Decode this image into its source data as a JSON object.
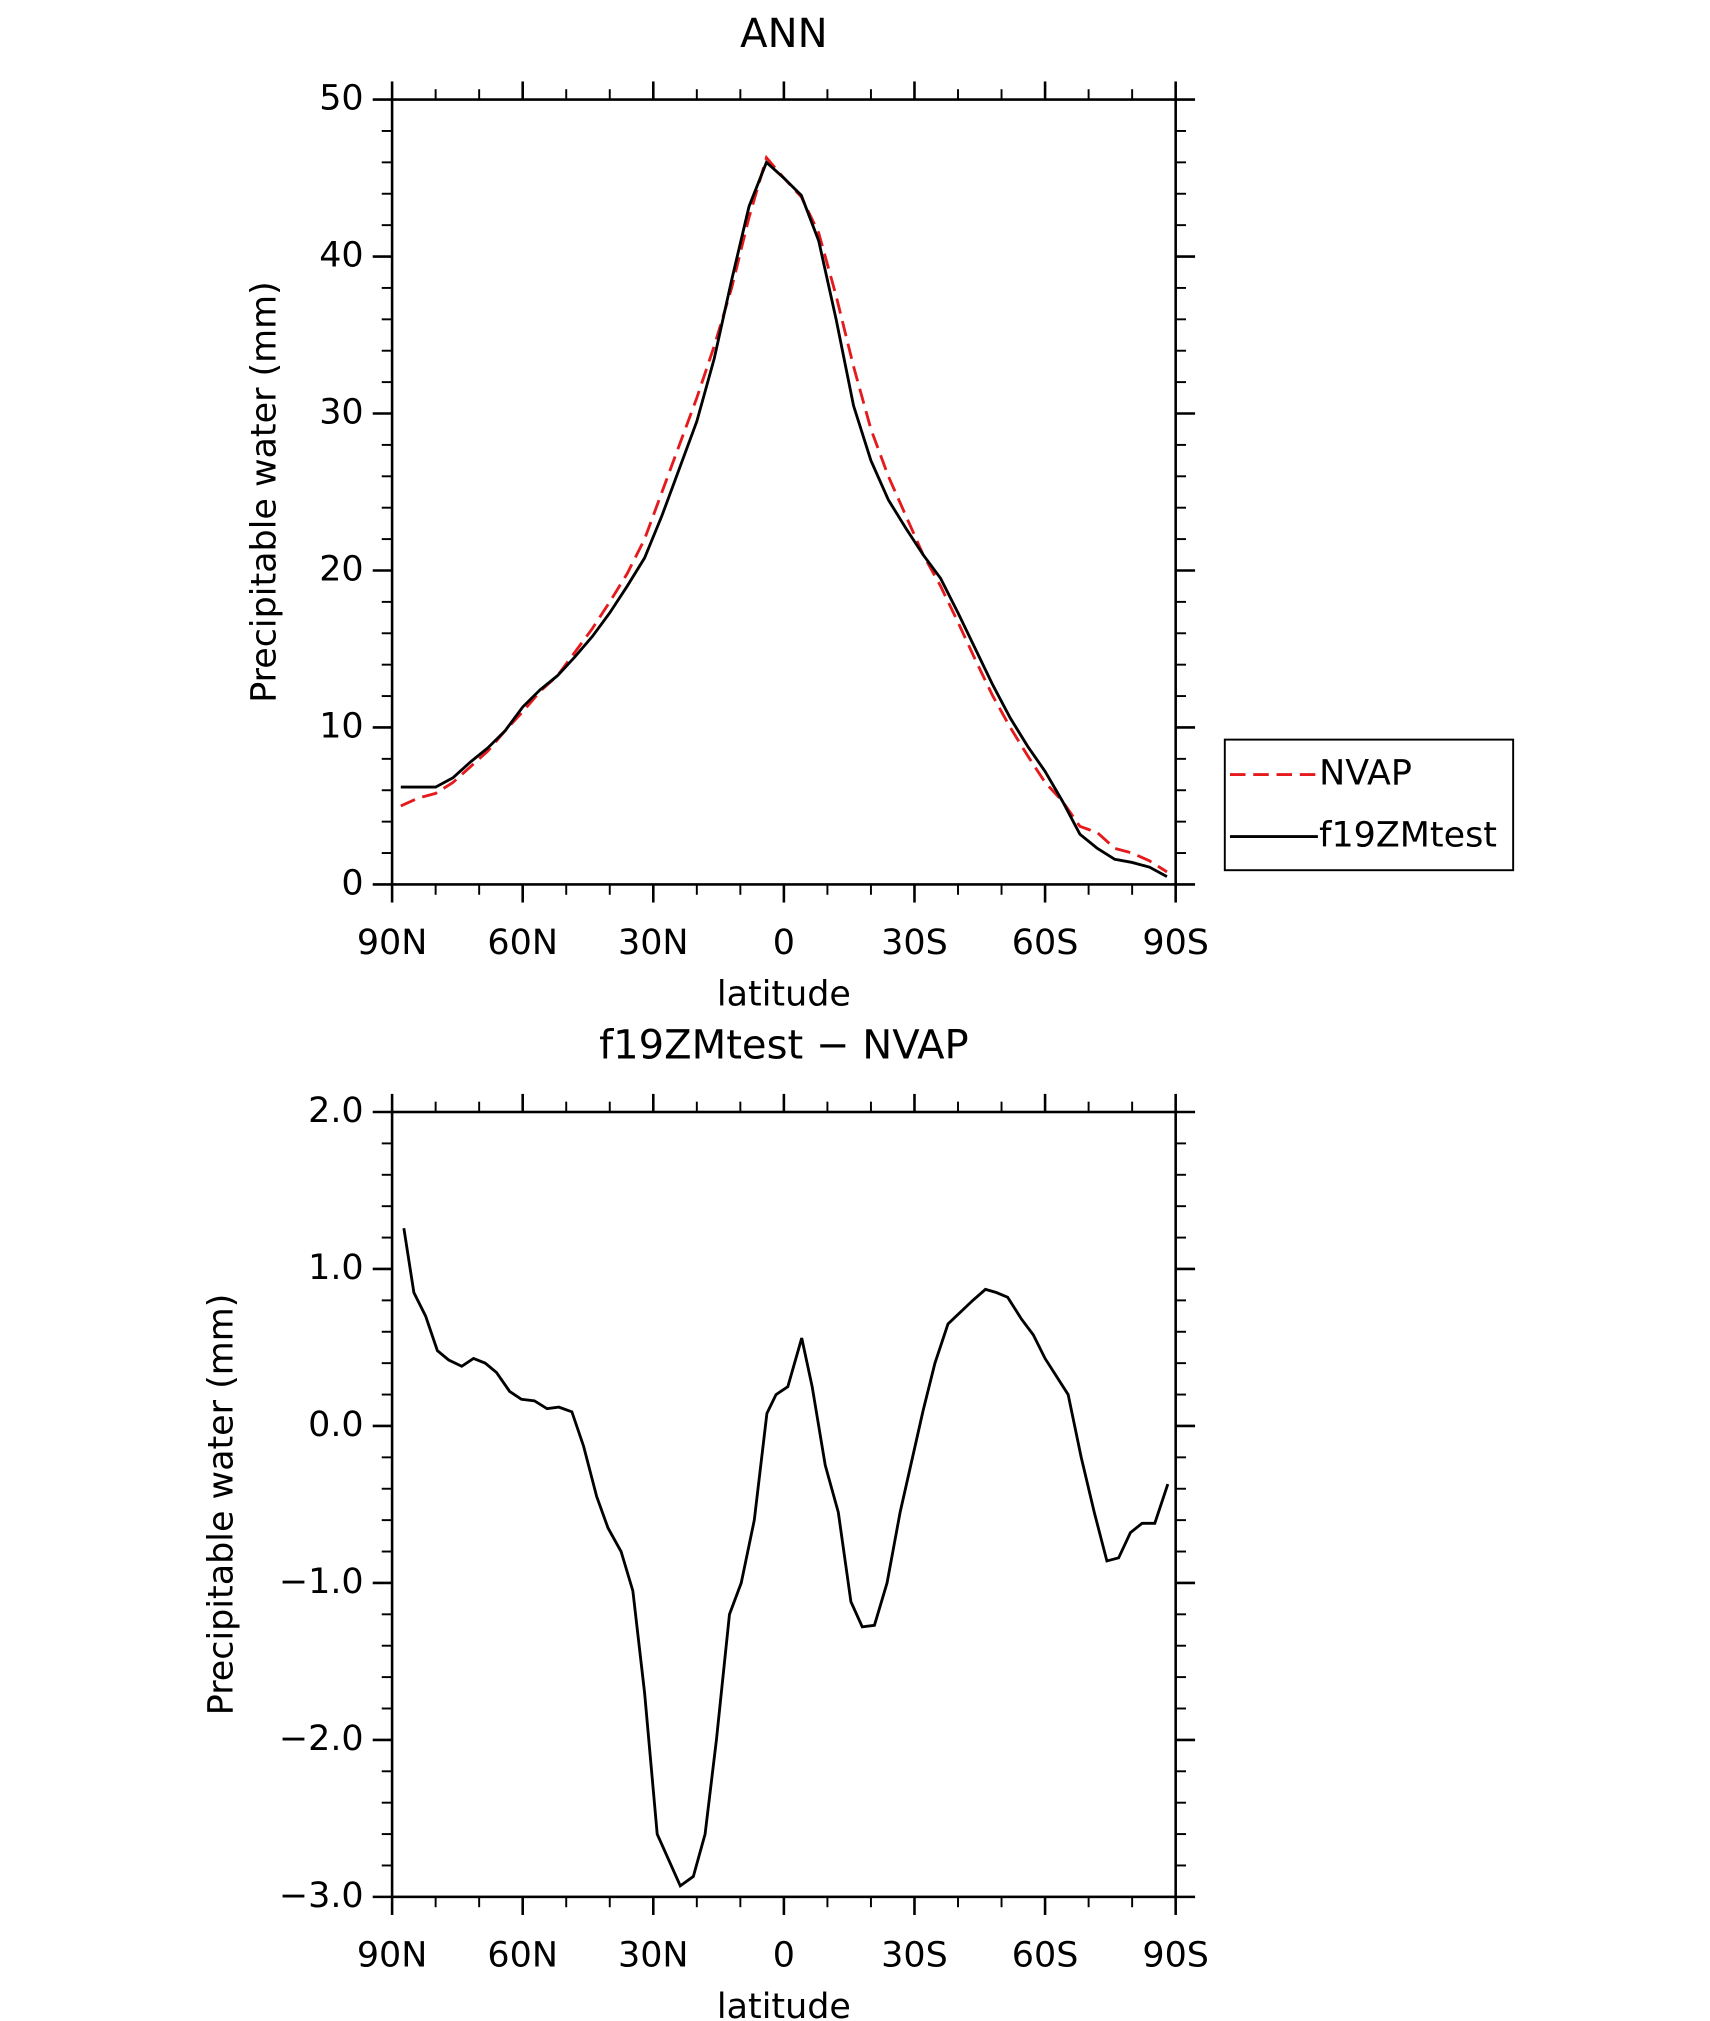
{
  "chart_data": [
    {
      "type": "line",
      "title": "ANN",
      "x_label": "latitude",
      "y_label": "Precipitable water (mm)",
      "x": [
        88,
        84,
        80,
        76,
        72,
        68,
        64,
        60,
        56,
        52,
        48,
        44,
        40,
        36,
        32,
        28,
        24,
        20,
        16,
        12,
        8,
        4,
        0,
        -4,
        -8,
        -12,
        -16,
        -20,
        -24,
        -28,
        -32,
        -36,
        -40,
        -44,
        -48,
        -52,
        -56,
        -60,
        -64,
        -68,
        -72,
        -76,
        -80,
        -84,
        -88
      ],
      "series": [
        {
          "name": "NVAP",
          "color": "#e41a1c",
          "line_style": "dashed",
          "values": [
            5.0,
            5.5,
            5.8,
            6.5,
            7.5,
            8.5,
            9.8,
            11,
            12.3,
            13.3,
            14.8,
            16.3,
            18,
            19.8,
            22,
            25,
            28,
            31,
            34.3,
            38,
            42.5,
            46.3,
            45,
            43.8,
            41.5,
            37.5,
            33,
            29,
            26,
            23.5,
            21,
            19,
            16.7,
            14.3,
            12,
            10,
            8.2,
            6.5,
            5.3,
            3.7,
            3.3,
            2.3,
            2.0,
            1.5,
            0.8
          ]
        },
        {
          "name": "f19ZMtest",
          "color": "#000000",
          "line_style": "solid",
          "values": [
            6.2,
            6.2,
            6.2,
            6.8,
            7.8,
            8.7,
            9.8,
            11.3,
            12.4,
            13.3,
            14.5,
            15.8,
            17.3,
            19,
            20.8,
            23.5,
            26.5,
            29.5,
            33.5,
            38.5,
            43.2,
            46.0,
            45,
            43.9,
            41,
            36,
            30.5,
            27,
            24.5,
            22.7,
            21,
            19.5,
            17.3,
            15,
            12.7,
            10.6,
            8.8,
            7.2,
            5.3,
            3.2,
            2.3,
            1.6,
            1.4,
            1.1,
            0.5
          ]
        }
      ],
      "xlim": [
        90,
        -90
      ],
      "xticks": [
        {
          "value": 90,
          "label": "90N"
        },
        {
          "value": 60,
          "label": "60N"
        },
        {
          "value": 30,
          "label": "30N"
        },
        0,
        {
          "value": -30,
          "label": "30S"
        },
        {
          "value": -60,
          "label": "60S"
        },
        {
          "value": -90,
          "label": "90S"
        }
      ],
      "ylim": [
        0,
        50
      ],
      "yticks": [
        0,
        10,
        20,
        30,
        40,
        50
      ],
      "legend": "right"
    },
    {
      "type": "line",
      "title": "f19ZMtest − NVAP",
      "x_label": "latitude",
      "y_label": "Precipitable water (mm)",
      "x": [
        87.3,
        85,
        82.3,
        79.6,
        77,
        74,
        71.3,
        68.6,
        66,
        63,
        60.3,
        57.3,
        54.4,
        51.7,
        48.7,
        46,
        43,
        40.4,
        37.4,
        34.7,
        32,
        29.1,
        23.8,
        20.8,
        18.1,
        15.5,
        12.5,
        9.8,
        6.8,
        3.9,
        1.8,
        -0.9,
        -4.1,
        -6.5,
        -9.5,
        -12.5,
        -15.4,
        -18,
        -20.8,
        -23.7,
        -26.7,
        -32,
        -34.7,
        -37.7,
        -43.4,
        -46.3,
        -48.8,
        -51.4,
        -54.6,
        -57.3,
        -60,
        -65.3,
        -68.3,
        -71.3,
        -74.2,
        -76.9,
        -79.6,
        -82.3,
        -85.2,
        -88.2
      ],
      "series": [
        {
          "color": "#000000",
          "line_style": "solid",
          "values": [
            1.26,
            0.85,
            0.7,
            0.48,
            0.42,
            0.38,
            0.43,
            0.4,
            0.34,
            0.22,
            0.17,
            0.16,
            0.11,
            0.12,
            0.09,
            -0.13,
            -0.45,
            -0.65,
            -0.8,
            -1.05,
            -1.7,
            -2.6,
            -2.93,
            -2.87,
            -2.6,
            -2.0,
            -1.2,
            -1.0,
            -0.6,
            0.08,
            0.2,
            0.25,
            0.56,
            0.25,
            -0.25,
            -0.55,
            -1.12,
            -1.28,
            -1.27,
            -1.0,
            -0.55,
            0.1,
            0.4,
            0.65,
            0.8,
            0.87,
            0.85,
            0.82,
            0.68,
            0.58,
            0.43,
            0.2,
            -0.2,
            -0.55,
            -0.86,
            -0.84,
            -0.68,
            -0.62,
            -0.62,
            -0.37
          ]
        }
      ],
      "xlim": [
        90,
        -90
      ],
      "xticks": [
        {
          "value": 90,
          "label": "90N"
        },
        {
          "value": 60,
          "label": "60N"
        },
        {
          "value": 30,
          "label": "30N"
        },
        0,
        {
          "value": -30,
          "label": "30S"
        },
        {
          "value": -60,
          "label": "60S"
        },
        {
          "value": -90,
          "label": "90S"
        }
      ],
      "ylim": [
        -3,
        2
      ],
      "yticks": [
        {
          "value": -3,
          "label": "−3.0"
        },
        {
          "value": -2,
          "label": "−2.0"
        },
        {
          "value": -1,
          "label": "−1.0"
        },
        {
          "value": 0,
          "label": "0.0"
        },
        {
          "value": 1,
          "label": "1.0"
        },
        {
          "value": 2,
          "label": "2.0"
        }
      ]
    }
  ]
}
